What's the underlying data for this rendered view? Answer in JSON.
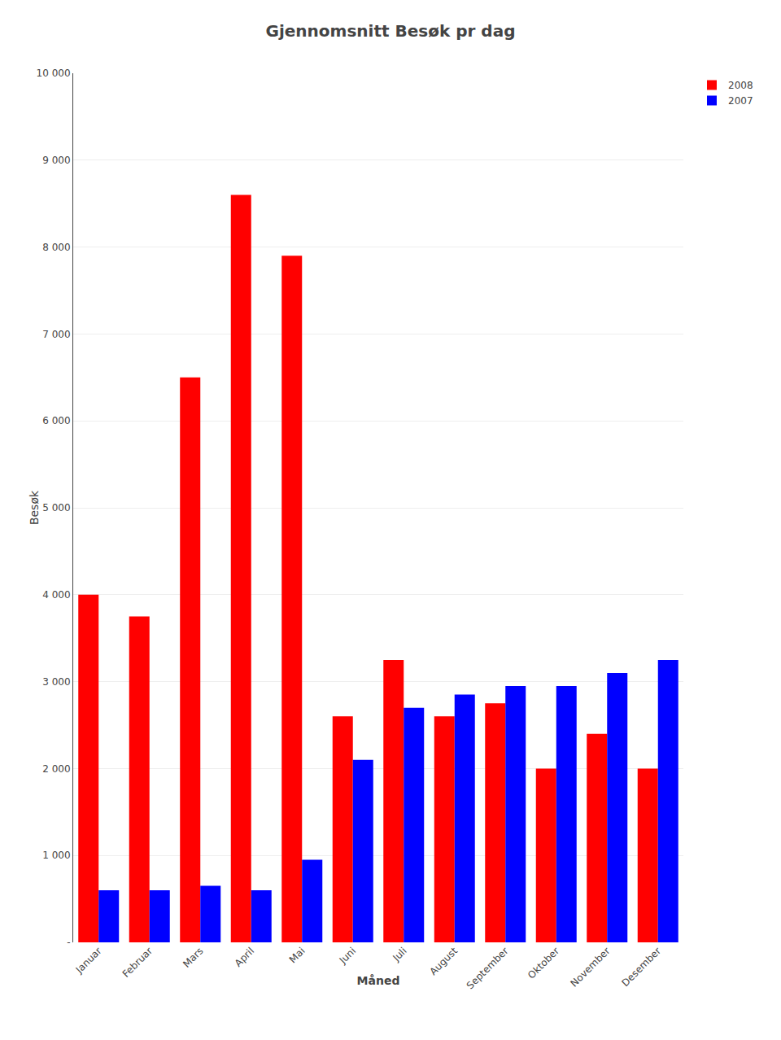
{
  "chart_data": {
    "type": "bar",
    "title": "Gjennomsnitt Besøk pr dag",
    "xlabel": "Måned",
    "ylabel": "Besøk",
    "categories": [
      "Januar",
      "Februar",
      "Mars",
      "April",
      "Mai",
      "Juni",
      "Juli",
      "August",
      "September",
      "Oktober",
      "November",
      "Desember"
    ],
    "series": [
      {
        "name": "2008",
        "color": "#FF0000",
        "values": [
          4000,
          3750,
          6500,
          8600,
          7900,
          2600,
          3250,
          2600,
          2750,
          2000,
          2400,
          2000
        ]
      },
      {
        "name": "2007",
        "color": "#0000FF",
        "values": [
          600,
          600,
          650,
          600,
          950,
          2100,
          2700,
          2850,
          2950,
          2950,
          3100,
          3250
        ]
      }
    ],
    "ylim": [
      0,
      10000
    ],
    "yticks": [
      {
        "value": 0,
        "label": "-"
      },
      {
        "value": 1000,
        "label": "1 000"
      },
      {
        "value": 2000,
        "label": "2 000"
      },
      {
        "value": 3000,
        "label": "3 000"
      },
      {
        "value": 4000,
        "label": "4 000"
      },
      {
        "value": 5000,
        "label": "5 000"
      },
      {
        "value": 6000,
        "label": "6 000"
      },
      {
        "value": 7000,
        "label": "7 000"
      },
      {
        "value": 8000,
        "label": "8 000"
      },
      {
        "value": 9000,
        "label": "9 000"
      },
      {
        "value": 10000,
        "label": "10 000"
      }
    ],
    "grid": true,
    "legend": "upper right"
  }
}
